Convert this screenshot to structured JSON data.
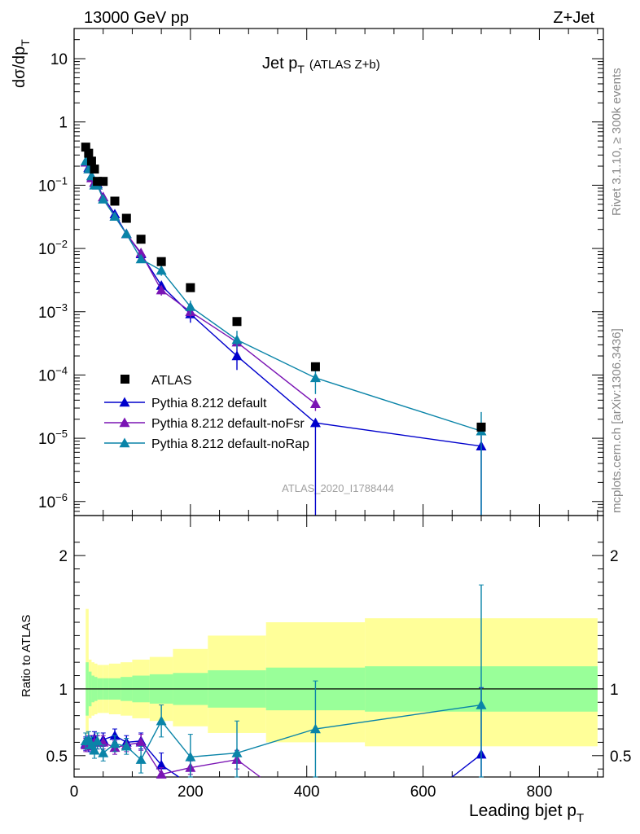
{
  "header": {
    "energy_label": "13000 GeV pp",
    "process_label": "Z+Jet"
  },
  "chart_data": [
    {
      "type": "scatter",
      "panel": "main",
      "title": "Jet p_T (ATLAS Z+b)",
      "title_main": "Jet p",
      "title_sub": "T",
      "title_suffix": "(ATLAS Z+b)",
      "ylabel": "dσ/dp_T",
      "ylabel_main": "dσ/dp",
      "ylabel_sub": "T",
      "yscale": "log",
      "xlim": [
        0,
        910
      ],
      "ylim": [
        6e-07,
        30
      ],
      "y_ticks": [
        {
          "value": 10,
          "label": "10"
        },
        {
          "value": 1,
          "label": "1"
        },
        {
          "value": 0.1,
          "label": "10",
          "exp": "−1"
        },
        {
          "value": 0.01,
          "label": "10",
          "exp": "−2"
        },
        {
          "value": 0.001,
          "label": "10",
          "exp": "−3"
        },
        {
          "value": 0.0001,
          "label": "10",
          "exp": "−4"
        },
        {
          "value": 1e-05,
          "label": "10",
          "exp": "−5"
        },
        {
          "value": 1e-06,
          "label": "10",
          "exp": "−6"
        }
      ],
      "legend_position": "bottom-left",
      "side_label": "Rivet 3.1.10, ≥ 300k events",
      "side_label_2": "mcplots.cern.ch [arXiv:1306.3436]",
      "watermark": "ATLAS_2020_I1788444",
      "data": {
        "name": "ATLAS",
        "x": [
          20,
          25,
          30,
          35,
          40,
          50,
          70,
          90,
          115,
          150,
          200,
          280,
          415,
          700
        ],
        "y": [
          0.4,
          0.32,
          0.24,
          0.18,
          0.115,
          0.115,
          0.056,
          0.03,
          0.014,
          0.0062,
          0.0024,
          0.0007,
          0.000135,
          1.5e-05
        ]
      },
      "series": [
        {
          "name": "Pythia 8.212 default",
          "color": "#0000cc",
          "x": [
            20,
            25,
            30,
            35,
            40,
            50,
            70,
            90,
            115,
            150,
            200,
            280,
            415,
            700
          ],
          "y": [
            0.23,
            0.19,
            0.14,
            0.11,
            0.105,
            0.065,
            0.035,
            0.017,
            0.0082,
            0.0026,
            0.00092,
            0.0002,
            1.75e-05,
            7.5e-06
          ],
          "err_up": [
            0.01,
            0.01,
            0.01,
            0.008,
            0.008,
            0.005,
            0.003,
            0.002,
            0.0008,
            0.0004,
            0.00025,
            9e-05,
            0.0,
            3.5e-06
          ],
          "err_dn": [
            0.01,
            0.01,
            0.01,
            0.008,
            0.008,
            0.005,
            0.003,
            0.002,
            0.0008,
            0.0004,
            0.00025,
            8e-05,
            1.74e-05,
            7.4e-06
          ]
        },
        {
          "name": "Pythia 8.212 default-noFsr",
          "color": "#7a14b4",
          "x": [
            20,
            25,
            30,
            35,
            40,
            50,
            70,
            90,
            115,
            150,
            200,
            280,
            415
          ],
          "y": [
            0.23,
            0.18,
            0.13,
            0.11,
            0.1,
            0.065,
            0.032,
            0.017,
            0.0085,
            0.0022,
            0.001,
            0.00033,
            3.5e-05
          ],
          "err_up": [
            0.01,
            0.01,
            0.01,
            0.008,
            0.008,
            0.005,
            0.003,
            0.002,
            0.0008,
            0.0004,
            0.0002,
            8e-05,
            8e-06
          ],
          "err_dn": [
            0.01,
            0.01,
            0.01,
            0.008,
            0.008,
            0.005,
            0.003,
            0.002,
            0.0008,
            0.0004,
            0.0002,
            8e-05,
            8e-06
          ]
        },
        {
          "name": "Pythia 8.212 default-noRap",
          "color": "#0a84a8",
          "x": [
            20,
            25,
            30,
            35,
            40,
            50,
            70,
            90,
            115,
            150,
            200,
            280,
            415,
            700
          ],
          "y": [
            0.24,
            0.18,
            0.14,
            0.1,
            0.1,
            0.06,
            0.032,
            0.017,
            0.0068,
            0.0045,
            0.0012,
            0.00036,
            9e-05,
            1.3e-05
          ],
          "err_up": [
            0.01,
            0.01,
            0.01,
            0.008,
            0.008,
            0.005,
            0.003,
            0.002,
            0.0008,
            0.0008,
            0.0003,
            0.00014,
            4e-05,
            1.3e-05
          ],
          "err_dn": [
            0.01,
            0.01,
            0.01,
            0.008,
            0.008,
            0.005,
            0.003,
            0.002,
            0.0008,
            0.0008,
            0.0003,
            0.0001,
            4e-05,
            1.29e-05
          ]
        }
      ]
    },
    {
      "type": "scatter",
      "panel": "ratio",
      "ylabel": "Ratio to ATLAS",
      "xlabel": "Leading bjet p_T",
      "xlabel_main": "Leading bjet p",
      "xlabel_sub": "T",
      "xlim": [
        0,
        910
      ],
      "ylim": [
        0.34,
        2.3
      ],
      "x_ticks": [
        0,
        200,
        400,
        600,
        800
      ],
      "y_ticks": [
        0.5,
        1,
        2
      ],
      "bands": {
        "edges": [
          20,
          25,
          30,
          35,
          40,
          50,
          60,
          80,
          100,
          130,
          170,
          230,
          330,
          500,
          900
        ],
        "green_lo": [
          0.8,
          0.87,
          0.9,
          0.91,
          0.92,
          0.92,
          0.92,
          0.91,
          0.9,
          0.89,
          0.88,
          0.86,
          0.84,
          0.83
        ],
        "green_hi": [
          1.2,
          1.13,
          1.1,
          1.09,
          1.08,
          1.08,
          1.08,
          1.09,
          1.1,
          1.11,
          1.12,
          1.14,
          1.16,
          1.17
        ],
        "yellow_lo": [
          0.66,
          0.78,
          0.8,
          0.81,
          0.82,
          0.82,
          0.81,
          0.8,
          0.78,
          0.76,
          0.72,
          0.67,
          0.6,
          0.57
        ],
        "yellow_hi": [
          1.6,
          1.22,
          1.2,
          1.19,
          1.18,
          1.18,
          1.19,
          1.2,
          1.22,
          1.24,
          1.3,
          1.4,
          1.5,
          1.53
        ]
      },
      "series": [
        {
          "name": "Pythia 8.212 default",
          "color": "#0000cc",
          "points": [
            {
              "x": 20,
              "y": 0.59,
              "e": 0.05
            },
            {
              "x": 25,
              "y": 0.58,
              "e": 0.05
            },
            {
              "x": 30,
              "y": 0.6,
              "e": 0.05
            },
            {
              "x": 35,
              "y": 0.63,
              "e": 0.05
            },
            {
              "x": 40,
              "y": 0.6,
              "e": 0.05
            },
            {
              "x": 50,
              "y": 0.62,
              "e": 0.05
            },
            {
              "x": 70,
              "y": 0.65,
              "e": 0.05
            },
            {
              "x": 90,
              "y": 0.6,
              "e": 0.05
            },
            {
              "x": 115,
              "y": 0.61,
              "e": 0.06
            },
            {
              "x": 150,
              "y": 0.43,
              "e": 0.09
            },
            {
              "x": 180,
              "y": 0.3,
              "e": 0.0
            }
          ],
          "segments": [
            {
              "x": [
                650,
                700
              ],
              "y": [
                0.3,
                0.51
              ]
            }
          ],
          "extra_points": [
            {
              "x": 700,
              "y": 0.51,
              "e_up": 0.5,
              "e_dn": 0.2
            }
          ]
        },
        {
          "name": "Pythia 8.212 default-noFsr",
          "color": "#7a14b4",
          "points": [
            {
              "x": 20,
              "y": 0.58,
              "e": 0.05
            },
            {
              "x": 25,
              "y": 0.6,
              "e": 0.05
            },
            {
              "x": 30,
              "y": 0.57,
              "e": 0.05
            },
            {
              "x": 35,
              "y": 0.6,
              "e": 0.05
            },
            {
              "x": 40,
              "y": 0.6,
              "e": 0.05
            },
            {
              "x": 50,
              "y": 0.6,
              "e": 0.05
            },
            {
              "x": 70,
              "y": 0.56,
              "e": 0.05
            },
            {
              "x": 90,
              "y": 0.58,
              "e": 0.05
            },
            {
              "x": 115,
              "y": 0.6,
              "e": 0.06
            },
            {
              "x": 150,
              "y": 0.36,
              "e": 0.05
            },
            {
              "x": 200,
              "y": 0.41,
              "e": 0.05
            },
            {
              "x": 280,
              "y": 0.47,
              "e": 0.07
            },
            {
              "x": 320,
              "y": 0.33,
              "e": 0.0
            }
          ]
        },
        {
          "name": "Pythia 8.212 default-noRap",
          "color": "#0a84a8",
          "points": [
            {
              "x": 20,
              "y": 0.61,
              "e": 0.06
            },
            {
              "x": 25,
              "y": 0.62,
              "e": 0.06
            },
            {
              "x": 30,
              "y": 0.58,
              "e": 0.06
            },
            {
              "x": 35,
              "y": 0.54,
              "e": 0.06
            },
            {
              "x": 40,
              "y": 0.61,
              "e": 0.06
            },
            {
              "x": 50,
              "y": 0.52,
              "e": 0.06
            },
            {
              "x": 70,
              "y": 0.59,
              "e": 0.06
            },
            {
              "x": 90,
              "y": 0.57,
              "e": 0.06
            },
            {
              "x": 115,
              "y": 0.47,
              "e": 0.1
            },
            {
              "x": 150,
              "y": 0.76,
              "e": 0.12
            },
            {
              "x": 200,
              "y": 0.49,
              "e": 0.17
            },
            {
              "x": 280,
              "y": 0.52,
              "e": 0.24
            },
            {
              "x": 415,
              "y": 0.7,
              "e": 0.36
            },
            {
              "x": 700,
              "y": 0.88,
              "e": 0.9
            }
          ]
        }
      ]
    }
  ]
}
